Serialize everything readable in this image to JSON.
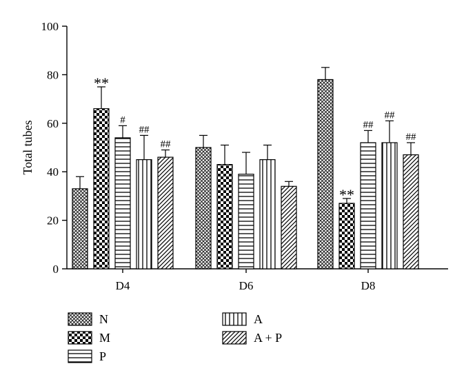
{
  "chart_data": {
    "type": "bar",
    "ylabel": "Total tubes",
    "ylim": [
      0,
      100
    ],
    "yticks": [
      0,
      20,
      40,
      60,
      80,
      100
    ],
    "categories": [
      "D4",
      "D6",
      "D8"
    ],
    "series": [
      {
        "name": "N",
        "pattern": "crosshatch",
        "values": [
          33,
          50,
          78
        ],
        "errors": [
          5,
          5,
          5
        ],
        "sig": [
          "",
          "",
          ""
        ]
      },
      {
        "name": "M",
        "pattern": "checker",
        "values": [
          66,
          43,
          27
        ],
        "errors": [
          9,
          8,
          2
        ],
        "sig": [
          "**",
          "",
          "**"
        ]
      },
      {
        "name": "P",
        "pattern": "horizontal",
        "values": [
          54,
          39,
          52
        ],
        "errors": [
          5,
          9,
          5
        ],
        "sig": [
          "#",
          "",
          "##"
        ]
      },
      {
        "name": "A",
        "pattern": "vertical",
        "values": [
          45,
          45,
          52
        ],
        "errors": [
          10,
          6,
          9
        ],
        "sig": [
          "##",
          "",
          "##"
        ]
      },
      {
        "name": "A + P",
        "pattern": "diagonal",
        "values": [
          46,
          34,
          47
        ],
        "errors": [
          3,
          2,
          5
        ],
        "sig": [
          "##",
          "",
          "##"
        ]
      }
    ],
    "legend_position": "bottom-left",
    "grid": false
  }
}
